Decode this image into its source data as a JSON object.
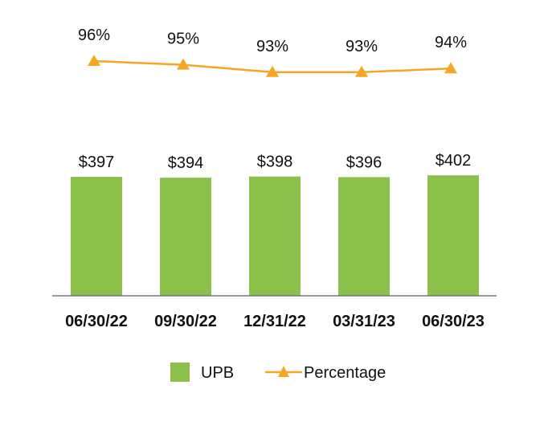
{
  "chart_data": {
    "type": "bar",
    "categories": [
      "06/30/22",
      "09/30/22",
      "12/31/22",
      "03/31/23",
      "06/30/23"
    ],
    "series": [
      {
        "name": "UPB",
        "kind": "bar",
        "values": [
          397,
          394,
          398,
          396,
          402
        ],
        "labels": [
          "$397",
          "$394",
          "$398",
          "$396",
          "$402"
        ],
        "color": "#8bc04a"
      },
      {
        "name": "Percentage",
        "kind": "line",
        "values": [
          96,
          95,
          93,
          93,
          94
        ],
        "labels": [
          "96%",
          "95%",
          "93%",
          "93%",
          "94%"
        ],
        "color": "#f5a623",
        "marker": "triangle"
      }
    ],
    "legend": {
      "placement": "bottom"
    },
    "grid": false
  }
}
